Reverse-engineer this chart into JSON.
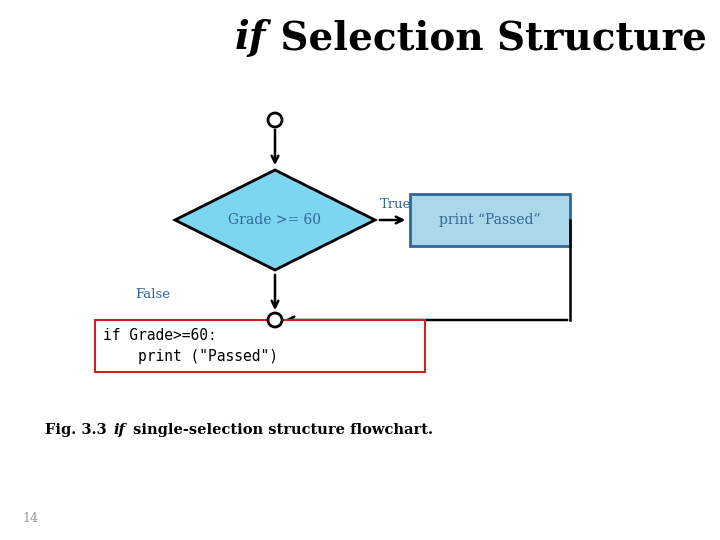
{
  "title_if": "if",
  "title_rest": " Selection Structure",
  "diamond_label": "Grade >= 60",
  "box_label": "print “Passed”",
  "true_label": "True",
  "false_label": "False",
  "code_line1": "if Grade>=60:",
  "code_line2": "    print (\"Passed\")",
  "fig_caption_bold": "Fig. 3.3   ",
  "fig_caption_if": "if",
  "fig_caption_rest": " single-selection structure flowchart.",
  "page_num": "14",
  "diamond_color": "#7DD6F0",
  "box_color": "#A8D8EA",
  "diamond_border": "#000000",
  "box_border": "#336699",
  "code_border": "#CC2222",
  "bg_color": "#FFFFFF",
  "text_color": "#336699",
  "arrow_color": "#000000"
}
